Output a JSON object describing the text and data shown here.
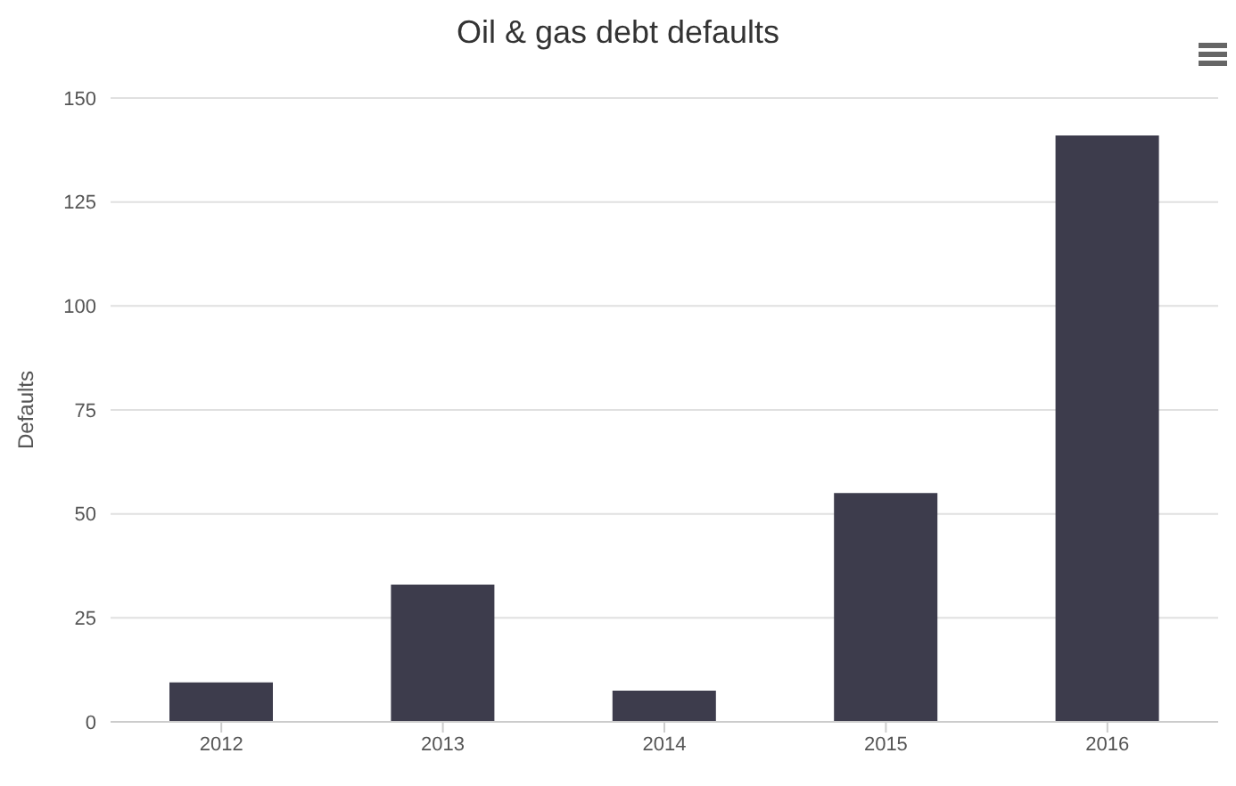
{
  "chart_data": {
    "type": "bar",
    "title": "Oil & gas debt defaults",
    "ylabel": "Defaults",
    "categories": [
      "2012",
      "2013",
      "2014",
      "2015",
      "2016"
    ],
    "values": [
      9.5,
      33,
      7.5,
      55,
      141
    ],
    "color": "#3d3c4c",
    "ylim": [
      0,
      150
    ],
    "yticks": [
      0,
      25,
      50,
      75,
      100,
      125,
      150
    ],
    "grid": "y"
  }
}
